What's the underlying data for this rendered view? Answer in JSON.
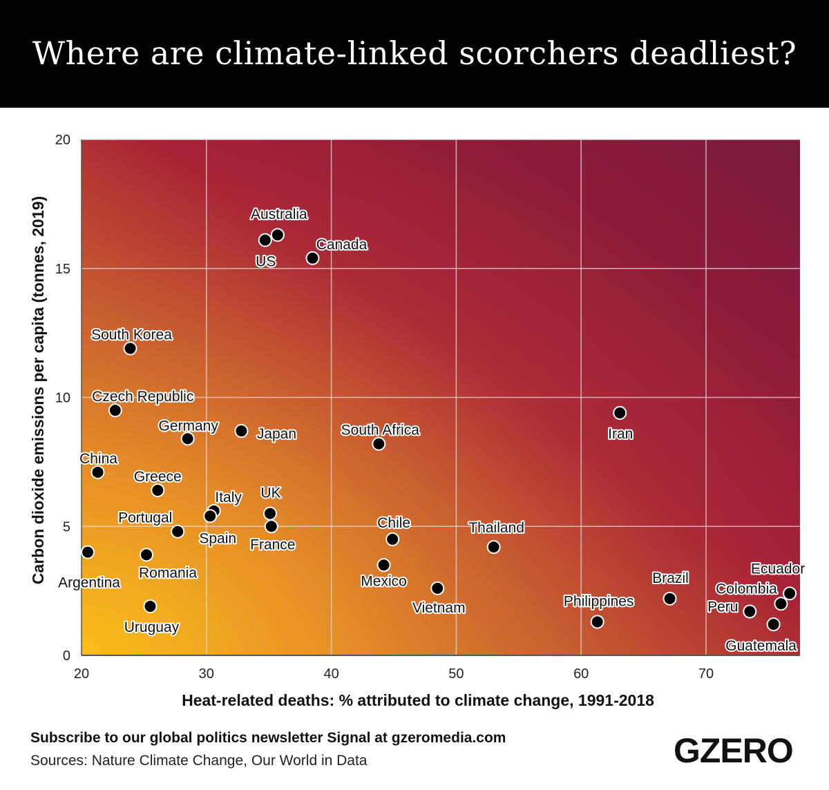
{
  "header": {
    "title": "Where are climate-linked scorchers deadliest?"
  },
  "footer": {
    "subscribe": "Subscribe to our global politics newsletter Signal at gzeromedia.com",
    "sources": "Sources: Nature Climate Change, Our World in Data",
    "logo": "GZERO"
  },
  "colors": {
    "gradient_low": "#f9b81b",
    "gradient_mid": "#a51e36",
    "gradient_high": "#7a1a3c",
    "point": "#000000"
  },
  "chart_data": {
    "type": "scatter",
    "title": "Where are climate-linked scorchers deadliest?",
    "xlabel": "Heat-related deaths: % attributed to climate change, 1991-2018",
    "ylabel": "Carbon dioxide emissions per capita (tonnes, 2019)",
    "xlim": [
      20,
      77.5
    ],
    "ylim": [
      0,
      20
    ],
    "xticks": [
      20,
      30,
      40,
      50,
      60,
      70
    ],
    "yticks": [
      0,
      5,
      10,
      15,
      20
    ],
    "grid": true,
    "points": [
      {
        "label": "Australia",
        "x": 35.7,
        "y": 16.3
      },
      {
        "label": "US",
        "x": 34.7,
        "y": 16.1
      },
      {
        "label": "Canada",
        "x": 38.5,
        "y": 15.4
      },
      {
        "label": "South Korea",
        "x": 23.9,
        "y": 11.9
      },
      {
        "label": "Czech Republic",
        "x": 22.7,
        "y": 9.5
      },
      {
        "label": "Germany",
        "x": 28.5,
        "y": 8.4
      },
      {
        "label": "Japan",
        "x": 32.8,
        "y": 8.7
      },
      {
        "label": "South Africa",
        "x": 43.8,
        "y": 8.2
      },
      {
        "label": "Iran",
        "x": 63.1,
        "y": 9.4
      },
      {
        "label": "China",
        "x": 21.3,
        "y": 7.1
      },
      {
        "label": "Greece",
        "x": 26.1,
        "y": 6.4
      },
      {
        "label": "Italy",
        "x": 30.6,
        "y": 5.6
      },
      {
        "label": "UK",
        "x": 35.1,
        "y": 5.5
      },
      {
        "label": "Spain",
        "x": 30.3,
        "y": 5.4
      },
      {
        "label": "France",
        "x": 35.2,
        "y": 5.0
      },
      {
        "label": "Portugal",
        "x": 27.7,
        "y": 4.8
      },
      {
        "label": "Argentina",
        "x": 20.5,
        "y": 4.0
      },
      {
        "label": "Romania",
        "x": 25.2,
        "y": 3.9
      },
      {
        "label": "Uruguay",
        "x": 25.5,
        "y": 1.9
      },
      {
        "label": "Chile",
        "x": 44.9,
        "y": 4.5
      },
      {
        "label": "Mexico",
        "x": 44.2,
        "y": 3.5
      },
      {
        "label": "Vietnam",
        "x": 48.5,
        "y": 2.6
      },
      {
        "label": "Thailand",
        "x": 53.0,
        "y": 4.2
      },
      {
        "label": "Philippines",
        "x": 61.3,
        "y": 1.3
      },
      {
        "label": "Brazil",
        "x": 67.1,
        "y": 2.2
      },
      {
        "label": "Ecuador",
        "x": 76.7,
        "y": 2.4
      },
      {
        "label": "Colombia",
        "x": 76.0,
        "y": 2.0
      },
      {
        "label": "Peru",
        "x": 73.5,
        "y": 1.7
      },
      {
        "label": "Guatemala",
        "x": 75.4,
        "y": 1.2
      }
    ]
  }
}
